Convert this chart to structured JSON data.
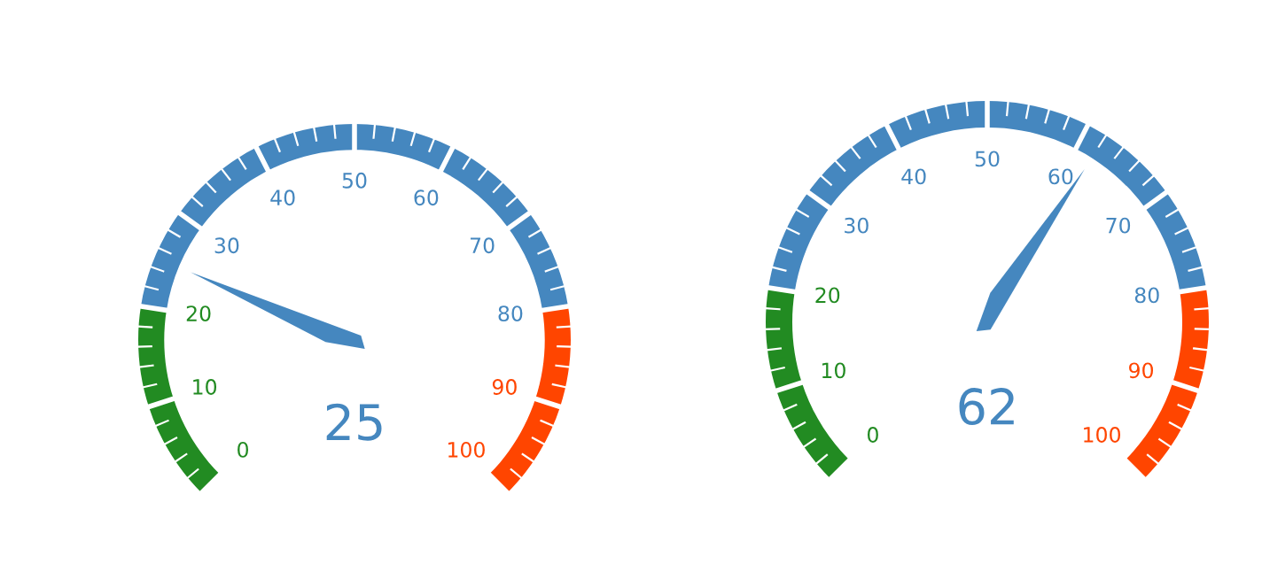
{
  "chart_data": [
    {
      "type": "donut",
      "categories": [
        null,
        null,
        null
      ],
      "values": [
        20,
        60,
        20
      ],
      "colors": [
        "#228b22",
        "#4587bf",
        "#ff4500"
      ],
      "annotations": [
        "0",
        "10",
        "20",
        "30",
        "40",
        "50",
        "60",
        "70",
        "80",
        "90",
        "100",
        "25"
      ]
    },
    {
      "type": "donut",
      "categories": [
        null,
        null,
        null
      ],
      "values": [
        20,
        60,
        20
      ],
      "colors": [
        "#228b22",
        "#4587bf",
        "#ff4500"
      ],
      "annotations": [
        "0",
        "10",
        "20",
        "30",
        "40",
        "50",
        "60",
        "70",
        "80",
        "90",
        "100",
        "62"
      ]
    }
  ]
}
